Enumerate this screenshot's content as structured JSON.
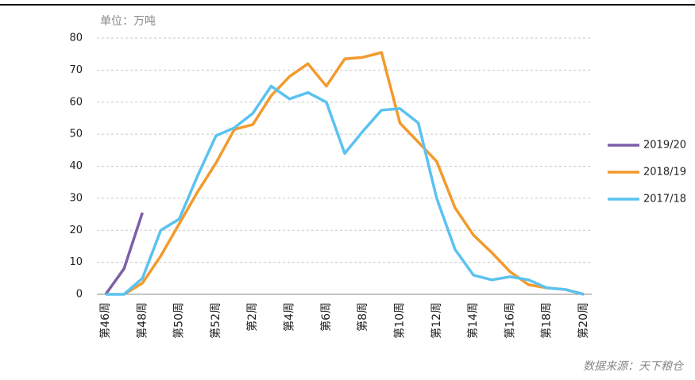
{
  "chart_data": {
    "type": "line",
    "unit_label": "单位：万吨",
    "source": "数据来源：天下粮仓",
    "categories": [
      "第46周",
      null,
      "第48周",
      null,
      "第50周",
      null,
      "第52周",
      null,
      "第2周",
      null,
      "第4周",
      null,
      "第6周",
      null,
      "第8周",
      null,
      "第10周",
      null,
      "第12周",
      null,
      "第14周",
      null,
      "第16周",
      null,
      "第18周",
      null,
      "第20周"
    ],
    "series": [
      {
        "name": "2019/20",
        "color": "#7f5fa8",
        "values": [
          0,
          8,
          25.5,
          null,
          null,
          null,
          null,
          null,
          null,
          null,
          null,
          null,
          null,
          null,
          null,
          null,
          null,
          null,
          null,
          null,
          null,
          null,
          null,
          null,
          null,
          null,
          null
        ]
      },
      {
        "name": "2018/19",
        "color": "#f39a2d",
        "values": [
          null,
          0,
          3.5,
          12,
          22,
          32,
          41,
          51.5,
          53,
          62,
          68,
          72,
          65,
          73.5,
          74,
          75.5,
          53.5,
          47.5,
          41.5,
          27,
          18.5,
          13,
          7,
          3,
          2,
          1.5,
          0
        ]
      },
      {
        "name": "2017/18",
        "color": "#5bc2f0",
        "values": [
          0,
          0,
          5,
          20,
          23.5,
          37,
          49.5,
          52,
          56.5,
          65,
          61,
          63,
          60,
          44,
          51,
          57.5,
          58,
          53.5,
          30,
          14,
          6,
          4.5,
          5.5,
          4.5,
          2,
          1.5,
          0
        ]
      }
    ],
    "ylim": [
      0,
      80
    ],
    "yticks": [
      0,
      10,
      20,
      30,
      40,
      50,
      60,
      70,
      80
    ],
    "grid": true,
    "legend": "right"
  }
}
